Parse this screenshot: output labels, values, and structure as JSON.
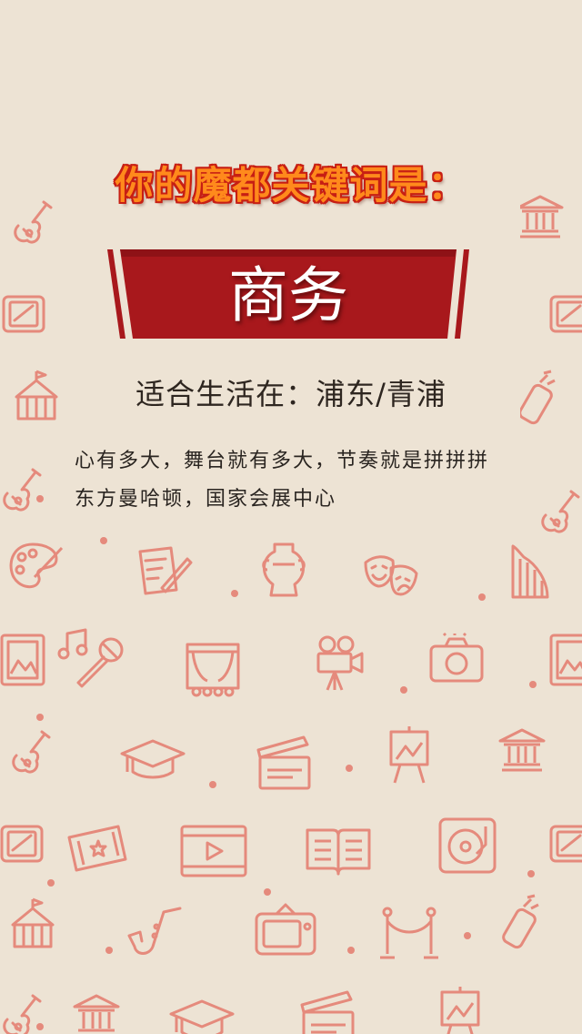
{
  "heading": "你的魔都关键词是：",
  "keyword": "商务",
  "live_in": {
    "label": "适合生活在：",
    "places": "浦东/青浦"
  },
  "description": {
    "line1": "心有多大，舞台就有多大，节奏就是拼拼拼",
    "line2": "东方曼哈顿，国家会展中心"
  },
  "colors": {
    "background": "#ede3d4",
    "pattern": "#e58a7c",
    "banner": "#a8181c",
    "title_fill": "#ff8a1c",
    "title_stroke": "#c71f14"
  },
  "background_icons": [
    "guitar-icon",
    "museum-icon",
    "tablet-icon",
    "circus-tent-icon",
    "spray-can-icon",
    "palette-icon",
    "quill-icon",
    "vase-icon",
    "theater-masks-icon",
    "harp-icon",
    "frame-icon",
    "music-note-icon",
    "microphone-icon",
    "stage-curtain-icon",
    "film-camera-icon",
    "photo-camera-icon",
    "graduation-cap-icon",
    "clapperboard-icon",
    "easel-icon",
    "tickets-icon",
    "video-player-icon",
    "book-icon",
    "vinyl-player-icon",
    "saxophone-icon",
    "tv-icon",
    "rope-barrier-icon"
  ]
}
